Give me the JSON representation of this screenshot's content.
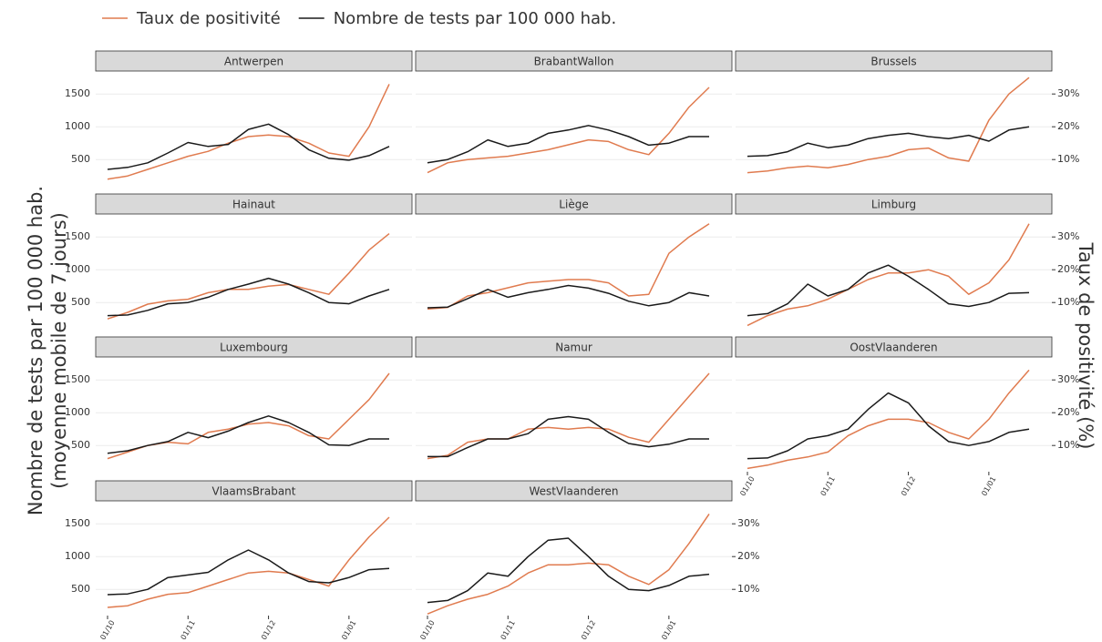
{
  "chart_data": {
    "type": "line",
    "series": [
      {
        "name": "Taux de positivité",
        "color": "#e07b4f",
        "axis": "y2"
      },
      {
        "name": "Nombre de tests par 100 000 hab.",
        "color": "#1a1a1a",
        "axis": "y"
      }
    ],
    "ylabel": [
      "Nombre de tests par 100 000 hab.",
      "(moyenne mobile de 7 jours)"
    ],
    "y2label": "Taux de positivité (%)",
    "x": [
      "01/10",
      "08/10",
      "16/10",
      "24/10",
      "01/11",
      "08/11",
      "16/11",
      "24/11",
      "01/12",
      "08/12",
      "16/12",
      "24/12",
      "01/01",
      "08/01",
      "16/01"
    ],
    "xticks": [
      "01/10",
      "01/11",
      "01/12",
      "01/01"
    ],
    "ylim": [
      100,
      1850
    ],
    "yticks": [
      500,
      1000,
      1500
    ],
    "y2lim": [
      2,
      37
    ],
    "y2ticks": [
      {
        "value": 10,
        "label": "10%"
      },
      {
        "value": 20,
        "label": "20%"
      },
      {
        "value": 30,
        "label": "30%"
      }
    ],
    "grid": true,
    "panels": [
      {
        "title": "Antwerpen",
        "series": [
          {
            "values": [
              4,
              5,
              7,
              9,
              11,
              12.5,
              15,
              17,
              17.5,
              17,
              15,
              12,
              11,
              20,
              33
            ]
          },
          {
            "values": [
              350,
              380,
              450,
              600,
              760,
              700,
              730,
              960,
              1040,
              880,
              650,
              520,
              490,
              560,
              700
            ]
          }
        ]
      },
      {
        "title": "BrabantWallon",
        "series": [
          {
            "values": [
              6,
              9,
              10,
              10.5,
              11,
              12,
              13,
              14.5,
              16,
              15.5,
              13,
              11.5,
              18,
              26,
              32
            ]
          },
          {
            "values": [
              450,
              500,
              620,
              800,
              700,
              750,
              900,
              950,
              1020,
              950,
              850,
              720,
              750,
              850,
              850
            ]
          }
        ]
      },
      {
        "title": "Brussels",
        "series": [
          {
            "values": [
              6,
              6.5,
              7.5,
              8,
              7.5,
              8.5,
              10,
              11,
              13,
              13.5,
              10.5,
              9.5,
              22,
              30,
              35
            ]
          },
          {
            "values": [
              550,
              560,
              620,
              750,
              680,
              720,
              820,
              870,
              900,
              850,
              820,
              870,
              780,
              950,
              1000
            ]
          }
        ]
      },
      {
        "title": "Hainaut",
        "series": [
          {
            "values": [
              5,
              7,
              9.5,
              10.5,
              11,
              13,
              14,
              14,
              15,
              15.5,
              14,
              12.5,
              19,
              26,
              31
            ]
          },
          {
            "values": [
              300,
              310,
              380,
              480,
              500,
              580,
              700,
              780,
              870,
              780,
              650,
              500,
              480,
              600,
              700
            ]
          }
        ]
      },
      {
        "title": "Liège",
        "series": [
          {
            "values": [
              8,
              8.5,
              12,
              13,
              14.5,
              16,
              16.5,
              17,
              17,
              16,
              12,
              12.5,
              25,
              30,
              34
            ]
          },
          {
            "values": [
              420,
              430,
              560,
              700,
              580,
              650,
              700,
              760,
              720,
              640,
              520,
              450,
              500,
              650,
              600
            ]
          }
        ]
      },
      {
        "title": "Limburg",
        "series": [
          {
            "values": [
              3,
              6,
              8,
              9,
              11,
              14,
              17,
              19,
              19,
              20,
              18,
              12.5,
              16,
              23,
              34
            ]
          },
          {
            "values": [
              300,
              330,
              480,
              780,
              600,
              700,
              950,
              1070,
              900,
              700,
              480,
              440,
              500,
              640,
              650
            ]
          }
        ]
      },
      {
        "title": "Luxembourg",
        "series": [
          {
            "values": [
              6,
              8,
              10,
              11,
              10.5,
              14,
              15,
              16.5,
              17,
              16,
              13,
              12,
              18,
              24,
              32
            ]
          },
          {
            "values": [
              380,
              420,
              500,
              560,
              700,
              620,
              720,
              850,
              950,
              850,
              700,
              510,
              500,
              600,
              600
            ]
          }
        ]
      },
      {
        "title": "Namur",
        "series": [
          {
            "values": [
              6,
              7,
              11,
              12,
              12,
              15,
              15.5,
              15,
              15.5,
              15,
              12.5,
              11,
              18,
              25,
              32
            ]
          },
          {
            "values": [
              330,
              330,
              470,
              600,
              600,
              680,
              900,
              940,
              900,
              700,
              530,
              480,
              520,
              600,
              600
            ]
          }
        ]
      },
      {
        "title": "OostVlaanderen",
        "series": [
          {
            "values": [
              3,
              4,
              5.5,
              6.5,
              8,
              13,
              16,
              18,
              18,
              17,
              14,
              12,
              18,
              26,
              33
            ]
          },
          {
            "values": [
              300,
              310,
              420,
              600,
              650,
              750,
              1050,
              1300,
              1150,
              800,
              560,
              500,
              560,
              700,
              750
            ]
          }
        ]
      },
      {
        "title": "VlaamsBrabant",
        "series": [
          {
            "values": [
              4.5,
              5,
              7,
              8.5,
              9,
              11,
              13,
              15,
              15.5,
              15,
              13,
              11,
              19,
              26,
              32
            ]
          },
          {
            "values": [
              420,
              430,
              500,
              680,
              720,
              760,
              950,
              1100,
              950,
              750,
              620,
              600,
              680,
              800,
              820
            ]
          }
        ]
      },
      {
        "title": "WestVlaanderen",
        "series": [
          {
            "values": [
              2.5,
              5,
              7,
              8.5,
              11,
              15,
              17.5,
              17.5,
              18,
              17.5,
              14,
              11.5,
              16,
              24,
              33
            ]
          },
          {
            "values": [
              300,
              330,
              480,
              750,
              700,
              1000,
              1250,
              1280,
              1000,
              700,
              500,
              480,
              560,
              700,
              730
            ]
          }
        ]
      }
    ]
  }
}
